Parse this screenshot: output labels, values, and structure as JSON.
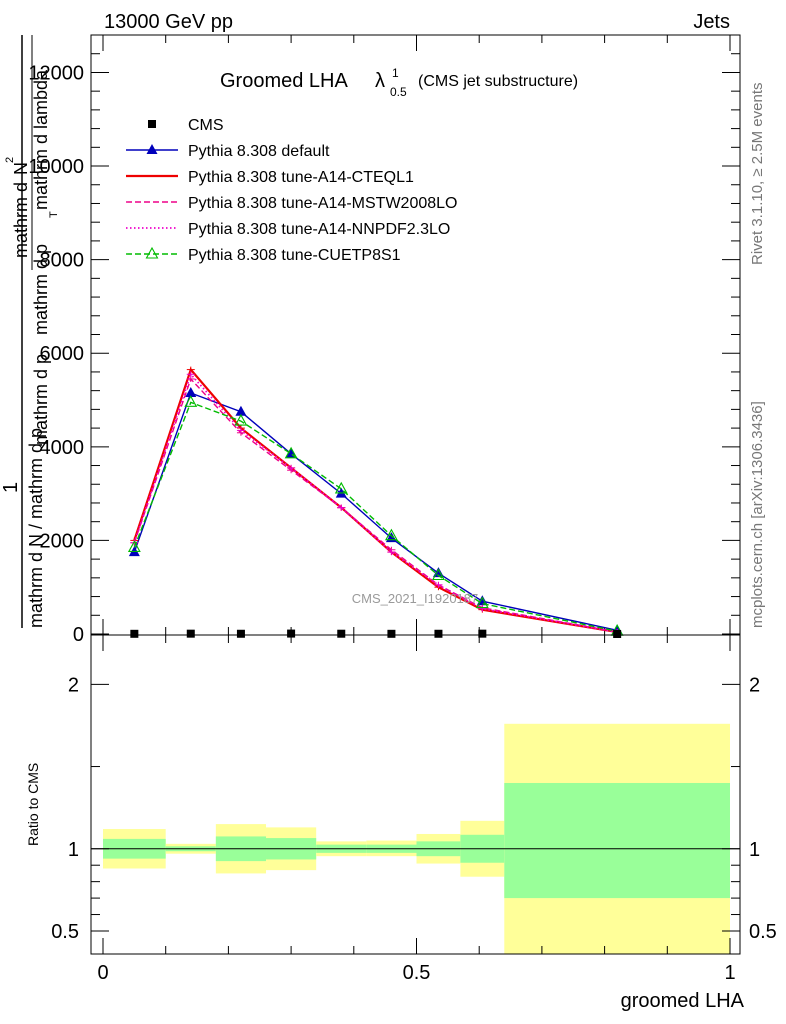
{
  "header": {
    "left": "13000 GeV pp",
    "right": "Jets"
  },
  "side_labels": {
    "rivet": "Rivet 3.1.10, ≥ 2.5M events",
    "mcplots": "mcplots.cern.ch [arXiv:1306.3436]"
  },
  "colors": {
    "cms": "#000000",
    "default": "#0000bb",
    "cteql1": "#ee0000",
    "mstw": "#ee0088",
    "nnpdf": "#ee00cc",
    "cuetp8s1": "#00bb00",
    "band_inner": "#99ff99",
    "band_outer": "#ffff99"
  },
  "chart_data": [
    {
      "type": "line",
      "title_main": "Groomed LHA",
      "title_lambda": "λ",
      "title_sup": "1",
      "title_sub": "0.5",
      "title_note": "(CMS jet substructure)",
      "ylabel_num_1": "1",
      "ylabel_den_1": "mathrm d N / mathrm d p",
      "ylabel_num_2": "mathrm d",
      "ylabel_num_2b": "N",
      "ylabel_den_2": "mathrm d p",
      "ylabel_den_2b": "mathrm d p",
      "ylabel_den_2c": "mathrm d lambda",
      "ylabel_sub_t": "T",
      "ylabel_sup_2": "2",
      "xlim": [
        0,
        1
      ],
      "ylim": [
        0,
        12800
      ],
      "yticks": [
        0,
        2000,
        4000,
        6000,
        8000,
        10000,
        12000
      ],
      "ytick_labels": [
        "0",
        "2000",
        "4000",
        "6000",
        "8000",
        "10000",
        "12000"
      ],
      "watermark": "CMS_2021_I1920187",
      "bin_edges": [
        0,
        0.1,
        0.18,
        0.26,
        0.34,
        0.42,
        0.5,
        0.57,
        0.64,
        1.0
      ],
      "series": [
        {
          "name": "CMS",
          "key": "cms",
          "style": "square",
          "x": [
            0.05,
            0.14,
            0.22,
            0.3,
            0.38,
            0.46,
            0.535,
            0.605,
            0.82
          ],
          "y": [
            4,
            7,
            5,
            9,
            6,
            4,
            5,
            7,
            0
          ]
        },
        {
          "name": "Pythia 8.308 default",
          "key": "default",
          "style": "solid-triangle",
          "x": [
            0.05,
            0.14,
            0.22,
            0.3,
            0.38,
            0.46,
            0.535,
            0.605,
            0.82
          ],
          "y": [
            1750,
            5150,
            4750,
            3850,
            3000,
            2050,
            1300,
            700,
            80
          ]
        },
        {
          "name": "Pythia 8.308 tune-A14-CTEQL1",
          "key": "cteql1",
          "style": "solid",
          "x": [
            0.05,
            0.14,
            0.22,
            0.3,
            0.38,
            0.46,
            0.535,
            0.605,
            0.82
          ],
          "y": [
            2000,
            5650,
            4400,
            3550,
            2700,
            1750,
            1000,
            520,
            40
          ]
        },
        {
          "name": "Pythia 8.308 tune-A14-MSTW2008LO",
          "key": "mstw",
          "style": "dashed",
          "x": [
            0.05,
            0.14,
            0.22,
            0.3,
            0.38,
            0.46,
            0.535,
            0.605,
            0.82
          ],
          "y": [
            1950,
            5450,
            4300,
            3500,
            2700,
            1800,
            1050,
            560,
            45
          ]
        },
        {
          "name": "Pythia 8.308 tune-A14-NNPDF2.3LO",
          "key": "nnpdf",
          "style": "dotted",
          "x": [
            0.05,
            0.14,
            0.22,
            0.3,
            0.38,
            0.46,
            0.535,
            0.605,
            0.82
          ],
          "y": [
            1950,
            5550,
            4350,
            3550,
            2700,
            1750,
            1050,
            540,
            40
          ]
        },
        {
          "name": "Pythia 8.308 tune-CUETP8S1",
          "key": "cuetp8s1",
          "style": "dashed-open-triangle",
          "x": [
            0.05,
            0.14,
            0.22,
            0.3,
            0.38,
            0.46,
            0.535,
            0.605,
            0.82
          ],
          "y": [
            1850,
            4950,
            4550,
            3850,
            3100,
            2100,
            1250,
            650,
            60
          ]
        }
      ]
    },
    {
      "type": "area",
      "ylabel": "Ratio to CMS",
      "xlabel": "groomed LHA",
      "xlim": [
        0,
        1
      ],
      "ylim": [
        0.36,
        2.3
      ],
      "yticks": [
        0.5,
        1,
        2
      ],
      "ytick_labels": [
        "0.5",
        "1",
        "2"
      ],
      "xticks": [
        0,
        0.5,
        1
      ],
      "xtick_labels": [
        "0",
        "0.5",
        "1"
      ],
      "ref_line": 1,
      "bands": [
        {
          "x0": 0.0,
          "x1": 0.1,
          "inner": [
            0.94,
            1.06
          ],
          "outer": [
            0.88,
            1.12
          ]
        },
        {
          "x0": 0.1,
          "x1": 0.18,
          "inner": [
            0.985,
            1.015
          ],
          "outer": [
            0.97,
            1.03
          ]
        },
        {
          "x0": 0.18,
          "x1": 0.26,
          "inner": [
            0.925,
            1.075
          ],
          "outer": [
            0.85,
            1.15
          ]
        },
        {
          "x0": 0.26,
          "x1": 0.34,
          "inner": [
            0.935,
            1.065
          ],
          "outer": [
            0.87,
            1.13
          ]
        },
        {
          "x0": 0.34,
          "x1": 0.42,
          "inner": [
            0.975,
            1.025
          ],
          "outer": [
            0.955,
            1.045
          ]
        },
        {
          "x0": 0.42,
          "x1": 0.5,
          "inner": [
            0.975,
            1.025
          ],
          "outer": [
            0.955,
            1.05
          ]
        },
        {
          "x0": 0.5,
          "x1": 0.57,
          "inner": [
            0.955,
            1.045
          ],
          "outer": [
            0.91,
            1.09
          ]
        },
        {
          "x0": 0.57,
          "x1": 0.64,
          "inner": [
            0.915,
            1.085
          ],
          "outer": [
            0.83,
            1.17
          ]
        },
        {
          "x0": 0.64,
          "x1": 1.0,
          "inner": [
            0.7,
            1.4
          ],
          "outer": [
            0.36,
            1.76
          ]
        }
      ]
    }
  ]
}
